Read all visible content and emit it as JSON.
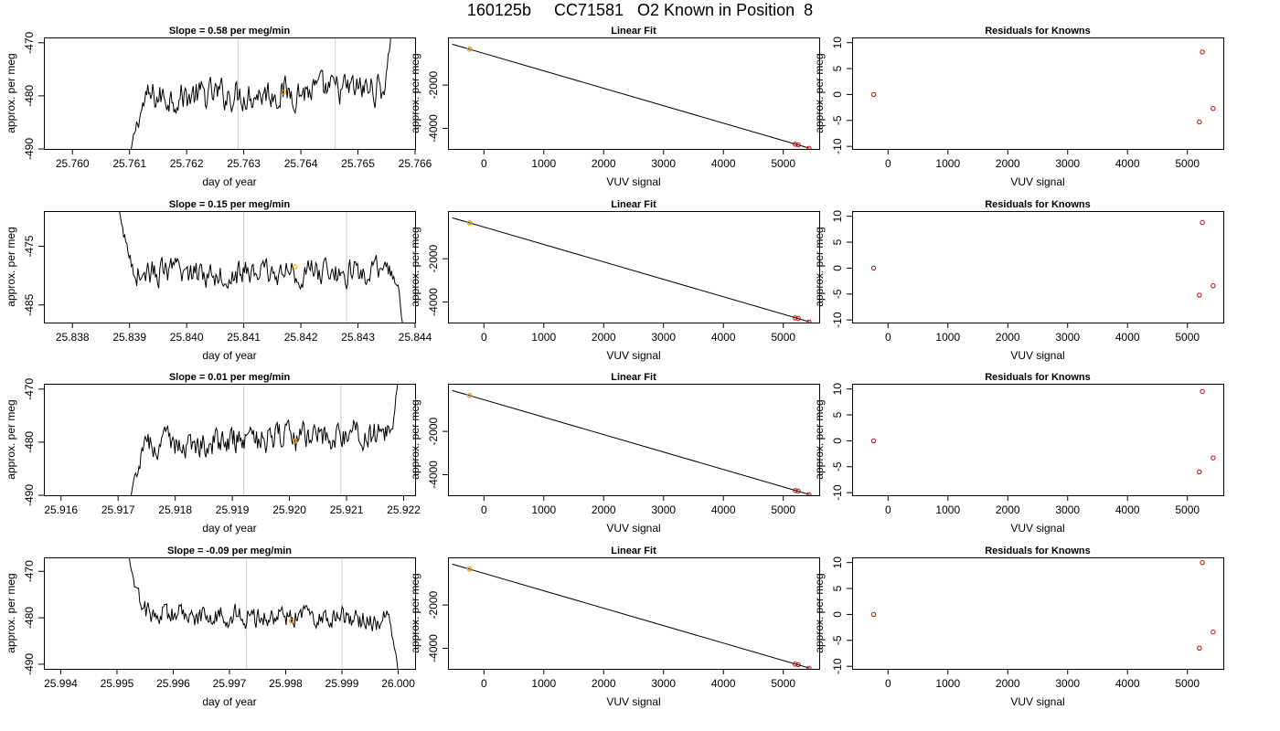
{
  "figure": {
    "title": "160125b     CC71581   O2 Known in Position  8"
  },
  "chart_data": [
    {
      "type": "line",
      "panel": "trace-row-1",
      "title": "Slope =  0.58  per meg/min",
      "xlabel": "day of year",
      "ylabel": "approx. per meg",
      "xlim": [
        25.7595,
        25.766
      ],
      "ylim": [
        -490,
        -469
      ],
      "xticks": [
        "25.760",
        "25.761",
        "25.762",
        "25.763",
        "25.764",
        "25.765",
        "25.766"
      ],
      "yticks": [
        "-490",
        "-480",
        "-470"
      ],
      "vlines": [
        25.7629,
        25.7646
      ],
      "trace_range": [
        25.761,
        25.7656
      ],
      "trace_baseline": -479.5,
      "trace_noise": 2.5,
      "trace_start": -492,
      "trace_end": -465,
      "trace_trend": 0.5,
      "marker": {
        "x": 25.7637,
        "y": -479.3
      },
      "colors": {
        "line": "#000000",
        "vline": "#d3d3d3",
        "marker": "#ffa500"
      }
    },
    {
      "type": "scatter",
      "panel": "fit-row-1",
      "title": "Linear Fit",
      "xlabel": "VUV signal",
      "ylabel": "approx. per meg",
      "xlim": [
        -600,
        5600
      ],
      "ylim": [
        -4950,
        200
      ],
      "xticks": [
        "0",
        "1000",
        "2000",
        "3000",
        "4000",
        "5000"
      ],
      "yticks": [
        "-4000",
        "-2000"
      ],
      "line": {
        "x": [
          -530,
          5440
        ],
        "y": [
          -110,
          -4920
        ]
      },
      "points": [
        {
          "x": -240,
          "y": -340
        },
        {
          "x": 5200,
          "y": -4730
        },
        {
          "x": 5250,
          "y": -4760
        },
        {
          "x": 5430,
          "y": -4920
        }
      ],
      "highlight": {
        "x": -240,
        "y": -340
      },
      "colors": {
        "line": "#000000",
        "point": "#cc0000",
        "highlight": "#ffa500"
      }
    },
    {
      "type": "scatter",
      "panel": "resid-row-1",
      "title": "Residuals for Knowns",
      "xlabel": "VUV signal",
      "ylabel": "approx. per meg",
      "xlim": [
        -600,
        5600
      ],
      "ylim": [
        -10.5,
        11
      ],
      "xticks": [
        "0",
        "1000",
        "2000",
        "3000",
        "4000",
        "5000"
      ],
      "yticks": [
        "-10",
        "-5",
        "0",
        "5",
        "10"
      ],
      "points": [
        {
          "x": -240,
          "y": 0
        },
        {
          "x": 5250,
          "y": 8.2
        },
        {
          "x": 5200,
          "y": -5.3
        },
        {
          "x": 5430,
          "y": -2.7
        }
      ],
      "colors": {
        "point": "#cc0000"
      }
    },
    {
      "type": "line",
      "panel": "trace-row-2",
      "title": "Slope =  0.15  per meg/min",
      "xlabel": "day of year",
      "ylabel": "approx. per meg",
      "xlim": [
        25.8375,
        25.844
      ],
      "ylim": [
        -488,
        -469
      ],
      "xticks": [
        "25.838",
        "25.839",
        "25.840",
        "25.841",
        "25.842",
        "25.843",
        "25.844"
      ],
      "yticks": [
        "-485",
        "-475"
      ],
      "vlines": [
        25.841,
        25.8428
      ],
      "trace_range": [
        25.8388,
        25.8438
      ],
      "trace_baseline": -479.5,
      "trace_noise": 2.0,
      "trace_start": -468,
      "trace_end": -490,
      "trace_trend": 0.0,
      "marker": {
        "x": 25.8419,
        "y": -478.5
      },
      "colors": {
        "line": "#000000",
        "vline": "#d3d3d3",
        "marker": "#ffa500"
      }
    },
    {
      "type": "scatter",
      "panel": "fit-row-2",
      "title": "Linear Fit",
      "xlabel": "VUV signal",
      "ylabel": "approx. per meg",
      "xlim": [
        -600,
        5600
      ],
      "ylim": [
        -4950,
        200
      ],
      "xticks": [
        "0",
        "1000",
        "2000",
        "3000",
        "4000",
        "5000"
      ],
      "yticks": [
        "-4000",
        "-2000"
      ],
      "line": {
        "x": [
          -530,
          5440
        ],
        "y": [
          -110,
          -4920
        ]
      },
      "points": [
        {
          "x": -240,
          "y": -340
        },
        {
          "x": 5200,
          "y": -4730
        },
        {
          "x": 5250,
          "y": -4760
        },
        {
          "x": 5430,
          "y": -4920
        }
      ],
      "highlight": {
        "x": -240,
        "y": -340
      },
      "colors": {
        "line": "#000000",
        "point": "#cc0000",
        "highlight": "#ffa500"
      }
    },
    {
      "type": "scatter",
      "panel": "resid-row-2",
      "title": "Residuals for Knowns",
      "xlabel": "VUV signal",
      "ylabel": "approx. per meg",
      "xlim": [
        -600,
        5600
      ],
      "ylim": [
        -10.5,
        11
      ],
      "xticks": [
        "0",
        "1000",
        "2000",
        "3000",
        "4000",
        "5000"
      ],
      "yticks": [
        "-10",
        "-5",
        "0",
        "5",
        "10"
      ],
      "points": [
        {
          "x": -240,
          "y": 0
        },
        {
          "x": 5250,
          "y": 8.8
        },
        {
          "x": 5200,
          "y": -5.2
        },
        {
          "x": 5430,
          "y": -3.4
        }
      ],
      "colors": {
        "point": "#cc0000"
      }
    },
    {
      "type": "line",
      "panel": "trace-row-3",
      "title": "Slope =  0.01  per meg/min",
      "xlabel": "day of year",
      "ylabel": "approx. per meg",
      "xlim": [
        25.9157,
        25.9222
      ],
      "ylim": [
        -490,
        -469
      ],
      "xticks": [
        "25.916",
        "25.917",
        "25.918",
        "25.919",
        "25.920",
        "25.921",
        "25.922"
      ],
      "yticks": [
        "-490",
        "-480",
        "-470"
      ],
      "vlines": [
        25.9192,
        25.9209
      ],
      "trace_range": [
        25.9172,
        25.9219
      ],
      "trace_baseline": -479.5,
      "trace_noise": 2.3,
      "trace_start": -492,
      "trace_end": -468,
      "trace_trend": 0.6,
      "marker": {
        "x": 25.9201,
        "y": -479.7
      },
      "colors": {
        "line": "#000000",
        "vline": "#d3d3d3",
        "marker": "#ffa500"
      }
    },
    {
      "type": "scatter",
      "panel": "fit-row-3",
      "title": "Linear Fit",
      "xlabel": "VUV signal",
      "ylabel": "approx. per meg",
      "xlim": [
        -600,
        5600
      ],
      "ylim": [
        -4950,
        200
      ],
      "xticks": [
        "0",
        "1000",
        "2000",
        "3000",
        "4000",
        "5000"
      ],
      "yticks": [
        "-4000",
        "-2000"
      ],
      "line": {
        "x": [
          -530,
          5440
        ],
        "y": [
          -110,
          -4920
        ]
      },
      "points": [
        {
          "x": -240,
          "y": -340
        },
        {
          "x": 5200,
          "y": -4730
        },
        {
          "x": 5250,
          "y": -4760
        },
        {
          "x": 5430,
          "y": -4920
        }
      ],
      "highlight": {
        "x": -240,
        "y": -340
      },
      "colors": {
        "line": "#000000",
        "point": "#cc0000",
        "highlight": "#ffa500"
      }
    },
    {
      "type": "scatter",
      "panel": "resid-row-3",
      "title": "Residuals for Knowns",
      "xlabel": "VUV signal",
      "ylabel": "approx. per meg",
      "xlim": [
        -600,
        5600
      ],
      "ylim": [
        -10.5,
        11
      ],
      "xticks": [
        "0",
        "1000",
        "2000",
        "3000",
        "4000",
        "5000"
      ],
      "yticks": [
        "-10",
        "-5",
        "0",
        "5",
        "10"
      ],
      "points": [
        {
          "x": -240,
          "y": 0
        },
        {
          "x": 5250,
          "y": 9.5
        },
        {
          "x": 5200,
          "y": -6.0
        },
        {
          "x": 5430,
          "y": -3.3
        }
      ],
      "colors": {
        "point": "#cc0000"
      }
    },
    {
      "type": "line",
      "panel": "trace-row-4",
      "title": "Slope =  -0.09  per meg/min",
      "xlabel": "day of year",
      "ylabel": "approx. per meg",
      "xlim": [
        25.9937,
        26.0003
      ],
      "ylim": [
        -491,
        -467
      ],
      "xticks": [
        "25.994",
        "25.995",
        "25.996",
        "25.997",
        "25.998",
        "25.999",
        "26.000"
      ],
      "yticks": [
        "-490",
        "-480",
        "-470"
      ],
      "vlines": [
        25.9973,
        25.999
      ],
      "trace_range": [
        25.9952,
        26.0
      ],
      "trace_baseline": -479.8,
      "trace_noise": 2.1,
      "trace_start": -466,
      "trace_end": -492,
      "trace_trend": -0.3,
      "marker": {
        "x": 25.9981,
        "y": -480.7
      },
      "colors": {
        "line": "#000000",
        "vline": "#d3d3d3",
        "marker": "#ffa500"
      }
    },
    {
      "type": "scatter",
      "panel": "fit-row-4",
      "title": "Linear Fit",
      "xlabel": "VUV signal",
      "ylabel": "approx. per meg",
      "xlim": [
        -600,
        5600
      ],
      "ylim": [
        -4950,
        200
      ],
      "xticks": [
        "0",
        "1000",
        "2000",
        "3000",
        "4000",
        "5000"
      ],
      "yticks": [
        "-4000",
        "-2000"
      ],
      "line": {
        "x": [
          -530,
          5440
        ],
        "y": [
          -110,
          -4920
        ]
      },
      "points": [
        {
          "x": -240,
          "y": -340
        },
        {
          "x": 5200,
          "y": -4730
        },
        {
          "x": 5250,
          "y": -4760
        },
        {
          "x": 5430,
          "y": -4920
        }
      ],
      "highlight": {
        "x": -240,
        "y": -340
      },
      "colors": {
        "line": "#000000",
        "point": "#cc0000",
        "highlight": "#ffa500"
      }
    },
    {
      "type": "scatter",
      "panel": "resid-row-4",
      "title": "Residuals for Knowns",
      "xlabel": "VUV signal",
      "ylabel": "approx. per meg",
      "xlim": [
        -600,
        5600
      ],
      "ylim": [
        -10.5,
        11
      ],
      "xticks": [
        "0",
        "1000",
        "2000",
        "3000",
        "4000",
        "5000"
      ],
      "yticks": [
        "-10",
        "-5",
        "0",
        "5",
        "10"
      ],
      "points": [
        {
          "x": -240,
          "y": 0
        },
        {
          "x": 5250,
          "y": 10.0
        },
        {
          "x": 5200,
          "y": -6.5
        },
        {
          "x": 5430,
          "y": -3.4
        }
      ],
      "colors": {
        "point": "#cc0000"
      }
    }
  ]
}
